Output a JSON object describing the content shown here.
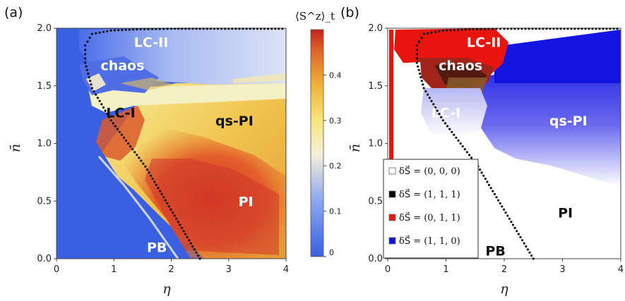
{
  "figure": {
    "panel_a_tag": "(a)",
    "panel_b_tag": "(b)",
    "colors": {
      "low": "#3a5fe0",
      "mid": "#f5f0d8",
      "high": "#c0251c",
      "legend_white": "#ffffff",
      "legend_black": "#000000",
      "legend_red": "#e8150f",
      "legend_blue": "#1010e0"
    }
  },
  "chart_data": [
    {
      "type": "heatmap",
      "panel": "(a)",
      "xlabel": "η",
      "ylabel": "n̄",
      "xlim": [
        0,
        4
      ],
      "ylim": [
        0,
        2
      ],
      "xticks": [
        "0",
        "1",
        "2",
        "3",
        "4"
      ],
      "yticks": [
        "0.0",
        "0.5",
        "1.0",
        "1.5",
        "2.0"
      ],
      "colorbar": {
        "title": "⟨S^z⟩_t",
        "ticks": [
          "0",
          "0.1",
          "0.2",
          "0.3",
          "0.4"
        ],
        "range": [
          0,
          0.5
        ]
      },
      "regions": [
        {
          "label": "LC-II",
          "x": 1.65,
          "y": 1.88,
          "value": 0.15
        },
        {
          "label": "chaos",
          "x": 1.15,
          "y": 1.68,
          "value": 0.1
        },
        {
          "label": "LC-I",
          "x": 1.12,
          "y": 1.27,
          "value": 0.45
        },
        {
          "label": "qs-PI",
          "x": 3.1,
          "y": 1.2,
          "value": 0.38
        },
        {
          "label": "PI",
          "x": 3.3,
          "y": 0.5,
          "value": 0.48
        },
        {
          "label": "PB",
          "x": 1.75,
          "y": 0.1,
          "value": 0.0
        }
      ],
      "boundary": {
        "style": "dotted",
        "x": [
          2.5,
          1.55,
          0.95,
          0.62,
          0.5,
          0.5,
          0.62,
          0.95,
          1.4,
          2.0,
          4.0
        ],
        "y": [
          0.0,
          0.8,
          1.2,
          1.48,
          1.7,
          1.85,
          1.95,
          1.98,
          1.99,
          1.995,
          1.995
        ]
      },
      "grid": false
    },
    {
      "type": "heatmap",
      "panel": "(b)",
      "xlabel": "η",
      "ylabel": "n̄",
      "xlim": [
        0,
        4
      ],
      "ylim": [
        0,
        2
      ],
      "xticks": [
        "0",
        "1",
        "2",
        "3",
        "4"
      ],
      "yticks": [
        "0.0",
        "0.5",
        "1.0",
        "1.5",
        "2.0"
      ],
      "legend": {
        "placement": "bottom-left",
        "entries": [
          {
            "label": "δS⃗ = (0, 0, 0)",
            "color": "white"
          },
          {
            "label": "δS⃗ = (1, 1, 1)",
            "color": "black"
          },
          {
            "label": "δS⃗ = (0, 1, 1)",
            "color": "red"
          },
          {
            "label": "δS⃗ = (1, 1, 0)",
            "color": "blue"
          }
        ]
      },
      "regions": [
        {
          "label": "LC-II",
          "x": 1.65,
          "y": 1.88
        },
        {
          "label": "chaos",
          "x": 1.25,
          "y": 1.68
        },
        {
          "label": "LC-I",
          "x": 1.0,
          "y": 1.27
        },
        {
          "label": "qs-PI",
          "x": 3.1,
          "y": 1.2
        },
        {
          "label": "PI",
          "x": 3.05,
          "y": 0.4
        },
        {
          "label": "PB",
          "x": 1.85,
          "y": 0.07
        }
      ],
      "boundary": {
        "style": "dotted",
        "x": [
          2.5,
          1.55,
          0.95,
          0.62,
          0.5,
          0.5,
          0.62,
          0.95,
          1.4,
          2.0,
          4.0
        ],
        "y": [
          0.0,
          0.8,
          1.2,
          1.48,
          1.7,
          1.85,
          1.95,
          1.98,
          1.99,
          1.995,
          1.995
        ]
      },
      "grid": false
    }
  ]
}
